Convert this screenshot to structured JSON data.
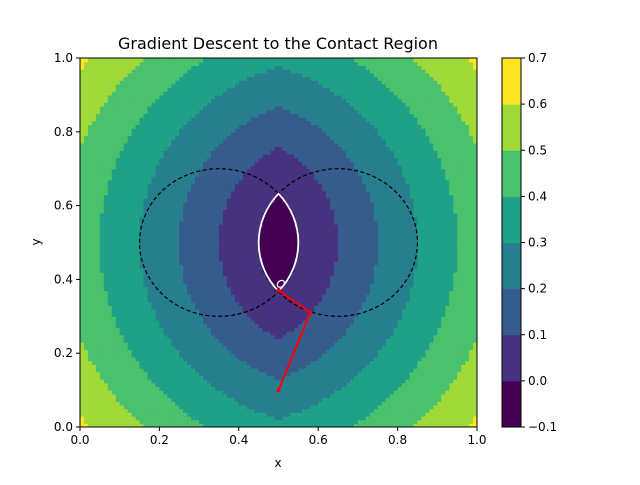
{
  "chart_data": {
    "type": "contour",
    "title": "Gradient Descent to the Contact Region",
    "xlabel": "x",
    "ylabel": "y",
    "xlim": [
      0.0,
      1.0
    ],
    "ylim": [
      0.0,
      1.0
    ],
    "x_ticks": [
      0.0,
      0.2,
      0.4,
      0.6,
      0.8,
      1.0
    ],
    "y_ticks": [
      0.0,
      0.2,
      0.4,
      0.6,
      0.8,
      1.0
    ],
    "x_tick_labels": [
      "0.0",
      "0.2",
      "0.4",
      "0.6",
      "0.8",
      "1.0"
    ],
    "y_tick_labels": [
      "0.0",
      "0.2",
      "0.4",
      "0.6",
      "0.8",
      "1.0"
    ],
    "grid": false,
    "colormap": "viridis",
    "contour_levels": [
      -0.1,
      0.0,
      0.1,
      0.2,
      0.3,
      0.4,
      0.5,
      0.6,
      0.7
    ],
    "contour_level_labels": [
      "−0.1",
      "0.0",
      "0.1",
      "0.2",
      "0.3",
      "0.4",
      "0.5",
      "0.6",
      "0.7"
    ],
    "level_colors": [
      "#440154",
      "#46327e",
      "#365c8d",
      "#277f8e",
      "#1fa187",
      "#4ac16d",
      "#a0da39",
      "#fde725"
    ],
    "circles": [
      {
        "cx": 0.35,
        "cy": 0.5,
        "r": 0.2
      },
      {
        "cx": 0.65,
        "cy": 0.5,
        "r": 0.2
      }
    ],
    "descent_path": {
      "color": "#ff0000",
      "points": [
        [
          0.5,
          0.1
        ],
        [
          0.58,
          0.31
        ],
        [
          0.5,
          0.37
        ]
      ]
    },
    "zero_contour_color": "#ffffff"
  }
}
